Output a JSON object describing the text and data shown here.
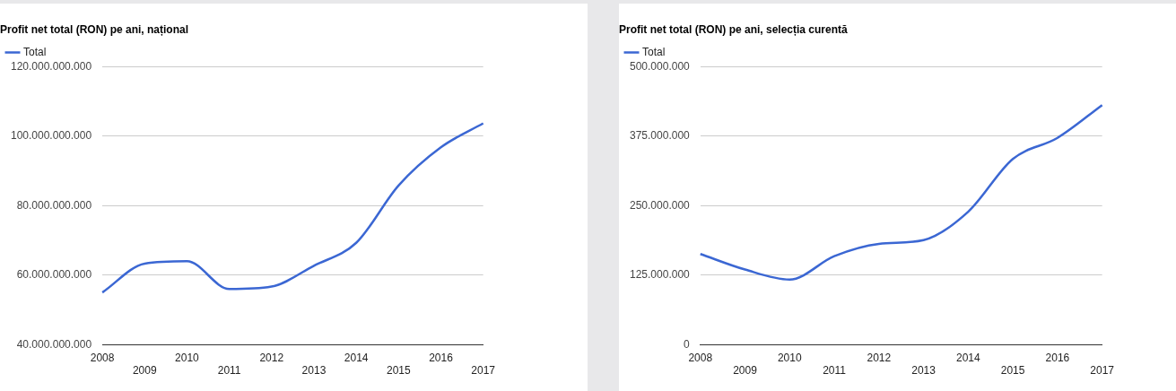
{
  "chart_data": [
    {
      "type": "line",
      "title": "Profit net total (RON) pe ani, național",
      "categories": [
        "2008",
        "2009",
        "2010",
        "2011",
        "2012",
        "2013",
        "2014",
        "2015",
        "2016",
        "2017"
      ],
      "series": [
        {
          "name": "Total",
          "color": "#3b67d3",
          "values": [
            55000000000,
            63300000000,
            64000000000,
            56000000000,
            56700000000,
            62700000000,
            69300000000,
            85800000000,
            96800000000,
            103700000000
          ]
        }
      ],
      "ylim": [
        40000000000,
        120000000000
      ],
      "yticks": [
        {
          "value": 40000000000,
          "label": "40.000.000.000"
        },
        {
          "value": 60000000000,
          "label": "60.000.000.000"
        },
        {
          "value": 80000000000,
          "label": "80.000.000.000"
        },
        {
          "value": 100000000000,
          "label": "100.000.000.000"
        },
        {
          "value": 120000000000,
          "label": "120.000.000.000"
        }
      ],
      "grid": "y",
      "legend": "top left"
    },
    {
      "type": "line",
      "title": "Profit net total (RON) pe ani, selecția curentă",
      "categories": [
        "2008",
        "2009",
        "2010",
        "2011",
        "2012",
        "2013",
        "2014",
        "2015",
        "2016",
        "2017"
      ],
      "series": [
        {
          "name": "Total",
          "color": "#3b67d3",
          "values": [
            163000000,
            135000000,
            117000000,
            159000000,
            181000000,
            188000000,
            239000000,
            334000000,
            372000000,
            431000000
          ]
        }
      ],
      "ylim": [
        0,
        500000000
      ],
      "yticks": [
        0,
        {
          "value": 125000000,
          "label": "125.000.000"
        },
        {
          "value": 250000000,
          "label": "250.000.000"
        },
        {
          "value": 375000000,
          "label": "375.000.000"
        },
        {
          "value": 500000000,
          "label": "500.000.000"
        }
      ],
      "grid": "y",
      "legend": "top left"
    }
  ]
}
